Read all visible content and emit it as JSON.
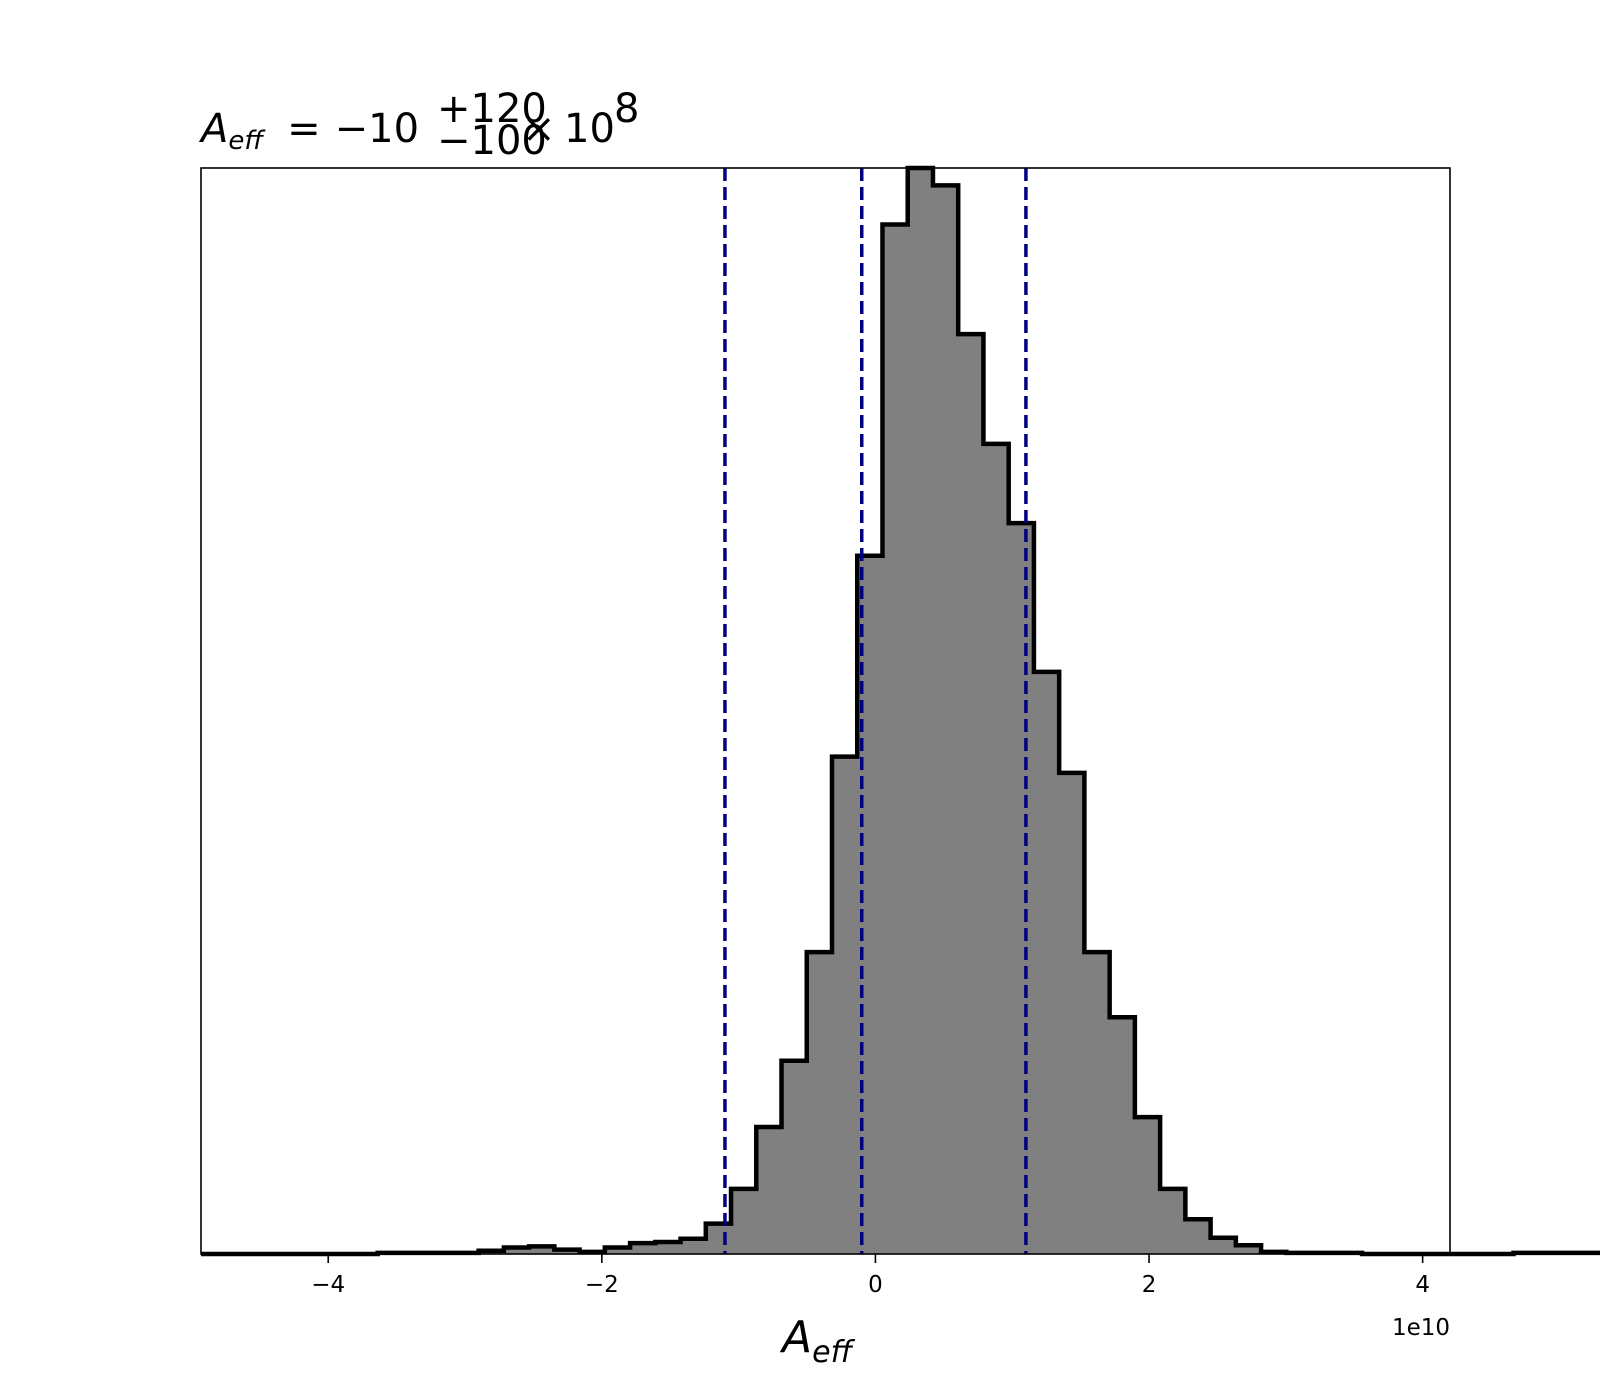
{
  "chart_data": {
    "type": "bar",
    "title": {
      "symbol": "A",
      "symbol_sub": "eff",
      "equals": "=",
      "value": "−10",
      "plus_err": "+120",
      "minus_err": "−100",
      "times": "×",
      "base": "10",
      "exponent": "8"
    },
    "xlabel": {
      "symbol": "A",
      "sub": "eff"
    },
    "offset_text": "1e10",
    "x_ticks": [
      {
        "value": -4,
        "label": "−4"
      },
      {
        "value": -2,
        "label": "−2"
      },
      {
        "value": 0,
        "label": "0"
      },
      {
        "value": 2,
        "label": "2"
      },
      {
        "value": 4,
        "label": "4"
      }
    ],
    "xlim": [
      -4.93,
      4.2
    ],
    "ylim": [
      0,
      100
    ],
    "y_ticks_shown": false,
    "grid": false,
    "bins": {
      "start": -4.93,
      "width": 0.1845,
      "counts": [
        0,
        0,
        0,
        0,
        0,
        0,
        0,
        0.1,
        0.1,
        0.1,
        0.1,
        0.3,
        0.6,
        0.7,
        0.4,
        0.2,
        0.6,
        1,
        1.1,
        1.4,
        2.8,
        6,
        11.7,
        17.8,
        27.8,
        45.8,
        64.3,
        94.8,
        100,
        98.4,
        84.7,
        74.6,
        67.3,
        53.6,
        44.3,
        27.8,
        21.8,
        12.6,
        6,
        3.2,
        1.5,
        0.8,
        0.2,
        0.1,
        0.1,
        0.1,
        0,
        0,
        0,
        0,
        0,
        0,
        0.1,
        0.1,
        0.1,
        0.1
      ]
    },
    "vlines": [
      {
        "name": "lower-bound",
        "value": -1.1
      },
      {
        "name": "median",
        "value": -0.1
      },
      {
        "name": "upper-bound",
        "value": 1.1
      }
    ],
    "colors": {
      "bar_fill": "#808080",
      "bar_edge": "#000000",
      "vline": "#000080",
      "axes": "#000000"
    }
  }
}
